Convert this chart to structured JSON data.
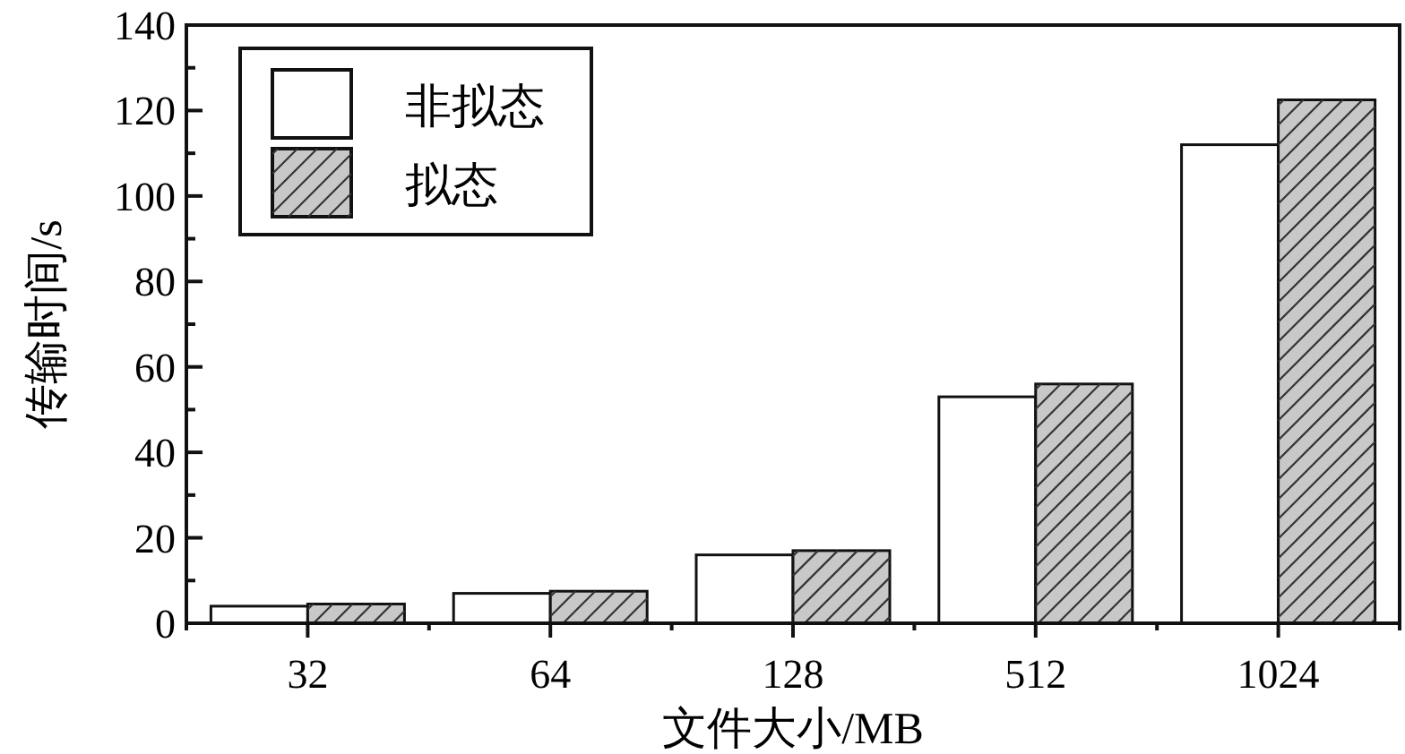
{
  "chart_data": {
    "type": "bar",
    "xlabel": "文件大小/MB",
    "ylabel": "传输时间/s",
    "categories": [
      "32",
      "64",
      "128",
      "512",
      "1024"
    ],
    "series": [
      {
        "name": "非拟态",
        "color": "#ffffff",
        "values": [
          4,
          7,
          16,
          53,
          112
        ]
      },
      {
        "name": "拟态",
        "color": "#c8c8c8",
        "values": [
          4.5,
          7.5,
          17,
          56,
          122.5
        ]
      }
    ],
    "ylim": [
      0,
      140
    ],
    "yticks": [
      0,
      {
        "value": 10,
        "label": null
      },
      20,
      {
        "value": 30,
        "label": null
      },
      40,
      {
        "value": 50,
        "label": null
      },
      60,
      {
        "value": 70,
        "label": null
      },
      80,
      {
        "value": 90,
        "label": null
      },
      100,
      {
        "value": 110,
        "label": null
      },
      120,
      {
        "value": 130,
        "label": null
      },
      140
    ],
    "legend": "top left",
    "grid": false
  }
}
